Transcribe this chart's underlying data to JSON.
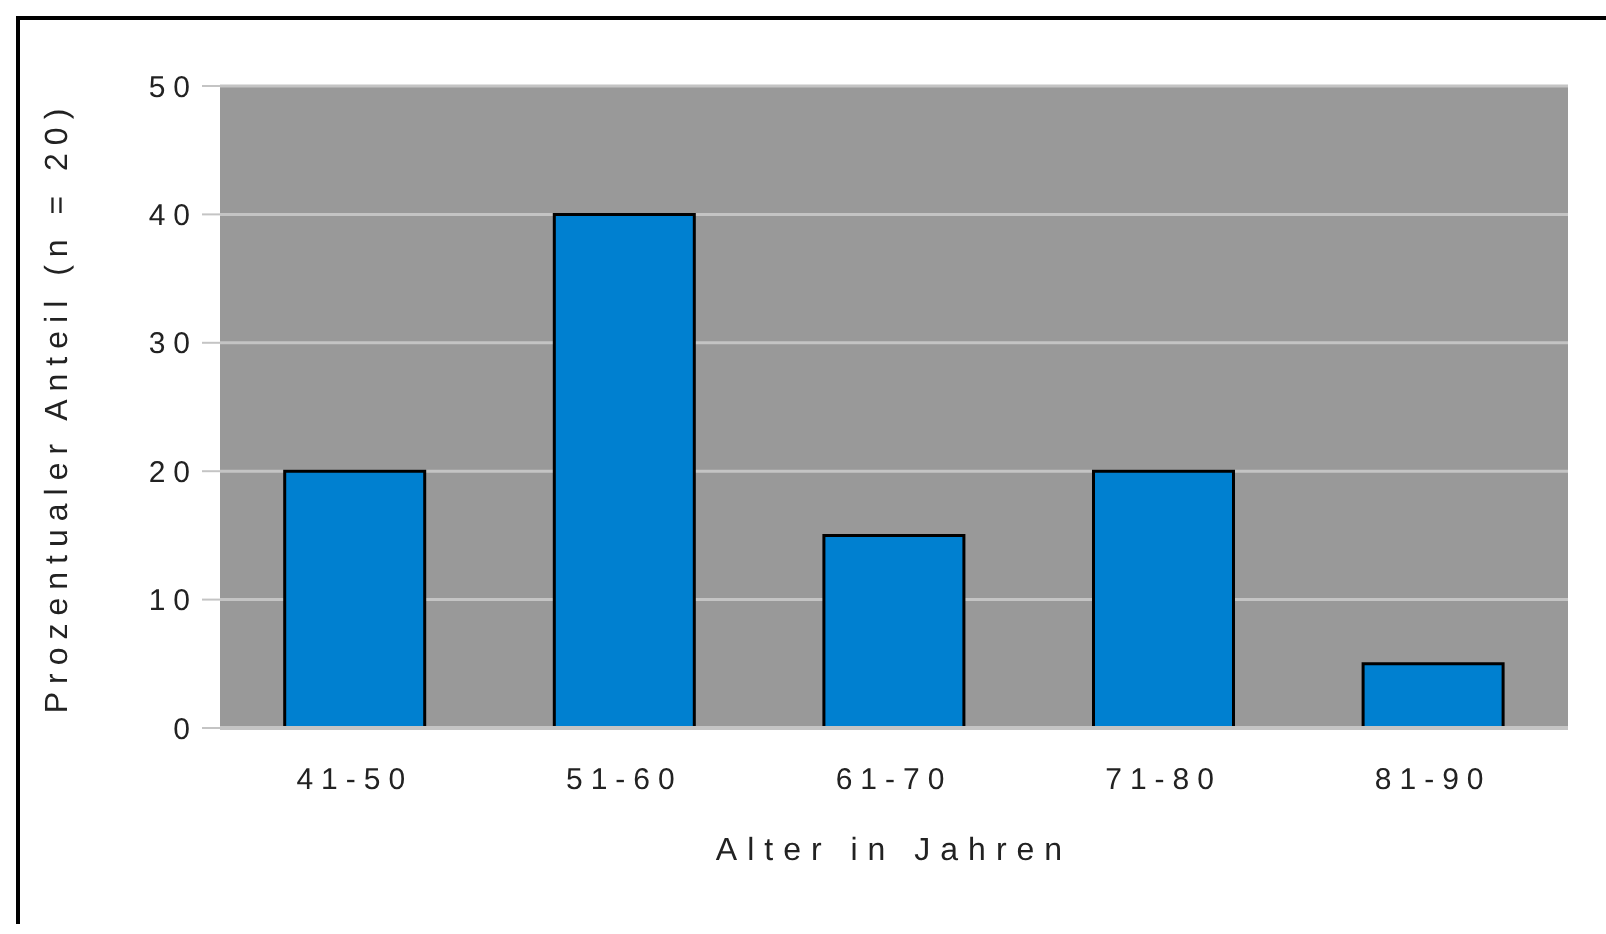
{
  "chart_data": {
    "type": "bar",
    "xlabel": "Alter in Jahren",
    "ylabel": "Prozentualer Anteil (n = 20)",
    "categories": [
      "41-50",
      "51-60",
      "61-70",
      "71-80",
      "81-90"
    ],
    "values": [
      20,
      40,
      15,
      20,
      5
    ],
    "color": "#0080d0",
    "ylim": [
      0,
      50
    ],
    "yticks": [
      0,
      10,
      20,
      30,
      40,
      50
    ],
    "grid": "y"
  }
}
